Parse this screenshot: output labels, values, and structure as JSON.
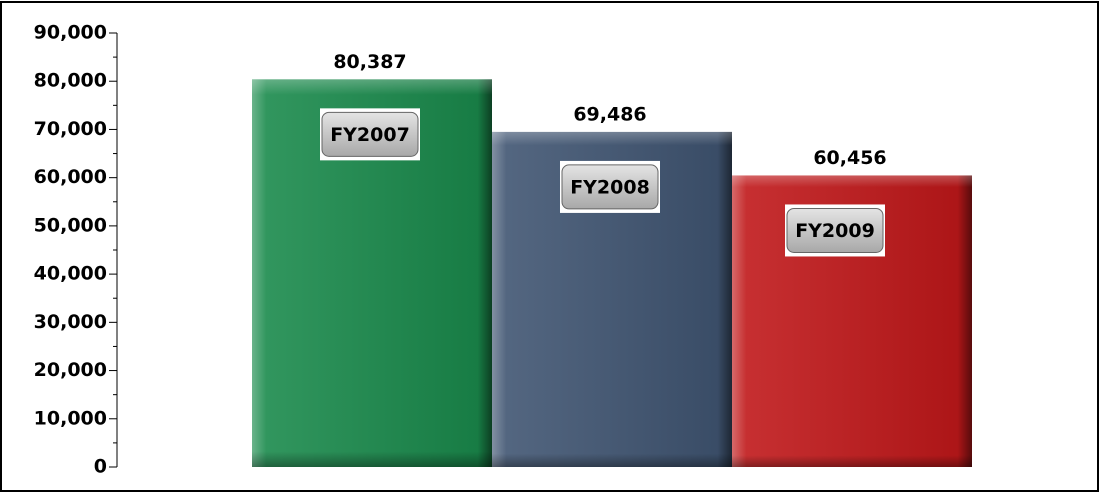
{
  "chart_data": {
    "type": "bar",
    "categories": [
      "FY2007",
      "FY2008",
      "FY2009"
    ],
    "values": [
      80387,
      69486,
      60456
    ],
    "value_labels": [
      "80,387",
      "69,486",
      "60,456"
    ],
    "colors": [
      "#1a8a4c",
      "#405572",
      "#c0181a"
    ],
    "ylim": [
      0,
      90000
    ],
    "yticks": [
      {
        "value": 0,
        "label": "0"
      },
      {
        "value": 10000,
        "label": "10,000"
      },
      {
        "value": 20000,
        "label": "20,000"
      },
      {
        "value": 30000,
        "label": "30,000"
      },
      {
        "value": 40000,
        "label": "40,000"
      },
      {
        "value": 50000,
        "label": "50,000"
      },
      {
        "value": 60000,
        "label": "60,000"
      },
      {
        "value": 70000,
        "label": "70,000"
      },
      {
        "value": 80000,
        "label": "80,000"
      },
      {
        "value": 90000,
        "label": "90,000"
      }
    ],
    "minor_yticks": [
      5000,
      15000,
      25000,
      35000,
      45000,
      55000,
      65000,
      75000,
      85000
    ]
  }
}
